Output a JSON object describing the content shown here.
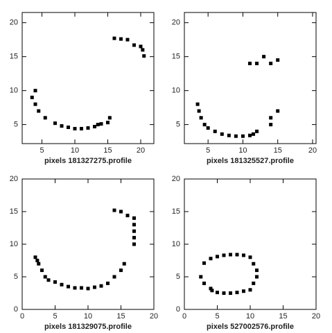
{
  "chart_data": [
    {
      "type": "scatter",
      "xlabel": "pixels  181327275.profile",
      "xlim": [
        2,
        22
      ],
      "ylim": [
        2.2,
        21.5
      ],
      "xticks": [
        5,
        10,
        15,
        20
      ],
      "yticks": [
        5,
        10,
        15,
        20
      ],
      "color": "#000000",
      "x": [
        3.5,
        4,
        4,
        4.5,
        5.5,
        7,
        8,
        9,
        10,
        11,
        12,
        13,
        13.5,
        14,
        15,
        15.3,
        16,
        17,
        18,
        19,
        20,
        20.3,
        20.5
      ],
      "y": [
        9,
        10,
        8,
        7,
        6,
        5.2,
        4.8,
        4.6,
        4.4,
        4.4,
        4.5,
        4.7,
        5,
        5.1,
        5.3,
        6,
        17.7,
        17.6,
        17.5,
        16.7,
        16.5,
        16,
        15.1
      ]
    },
    {
      "type": "scatter",
      "xlabel": "pixels  181325527.profile",
      "xlim": [
        1.6,
        20.5
      ],
      "ylim": [
        2.2,
        21.5
      ],
      "xticks": [
        5,
        10,
        15,
        20
      ],
      "yticks": [
        5,
        10,
        15,
        20
      ],
      "color": "#000000",
      "x": [
        3.5,
        3.7,
        4,
        4.5,
        5,
        6,
        7,
        8,
        9,
        10,
        11,
        11.5,
        12,
        14,
        14,
        15,
        11,
        12,
        13,
        14,
        15
      ],
      "y": [
        8,
        7,
        6,
        5,
        4.5,
        4,
        3.6,
        3.4,
        3.3,
        3.3,
        3.4,
        3.6,
        4,
        5,
        6,
        7,
        14,
        14,
        15,
        14,
        14.5
      ]
    },
    {
      "type": "scatter",
      "xlabel": "pixels  181329075.profile",
      "xlim": [
        0,
        20
      ],
      "ylim": [
        0,
        20
      ],
      "xticks": [
        0,
        5,
        10,
        15,
        20
      ],
      "yticks": [
        0,
        5,
        10,
        15,
        20
      ],
      "color": "#000000",
      "x": [
        2,
        2.3,
        2.5,
        3,
        3.5,
        4,
        5,
        6,
        7,
        8,
        9,
        10,
        11,
        12,
        13,
        14,
        15,
        15.5,
        14,
        15,
        16,
        17,
        17,
        17,
        17,
        17
      ],
      "y": [
        8,
        7.5,
        7,
        6,
        5,
        4.5,
        4.2,
        3.8,
        3.5,
        3.3,
        3.3,
        3.2,
        3.4,
        3.6,
        4,
        5,
        6,
        7,
        15.2,
        15,
        14.4,
        14,
        13,
        12,
        11,
        10
      ]
    },
    {
      "type": "scatter",
      "xlabel": "pixels  527002576.profile",
      "xlim": [
        0,
        20
      ],
      "ylim": [
        0,
        20
      ],
      "xticks": [
        0,
        5,
        10,
        15,
        20
      ],
      "yticks": [
        0,
        5,
        10,
        15,
        20
      ],
      "color": "#000000",
      "x": [
        2.5,
        3,
        4,
        4.2,
        5,
        6,
        7,
        8,
        9,
        10,
        10.5,
        11,
        11,
        10.5,
        10,
        9,
        8,
        7,
        6,
        5,
        4,
        3
      ],
      "y": [
        5,
        4,
        3.2,
        2.9,
        2.6,
        2.5,
        2.5,
        2.6,
        2.8,
        3,
        4,
        5,
        6,
        7,
        8,
        8.3,
        8.4,
        8.4,
        8.3,
        8.1,
        7.8,
        7.1
      ]
    }
  ]
}
